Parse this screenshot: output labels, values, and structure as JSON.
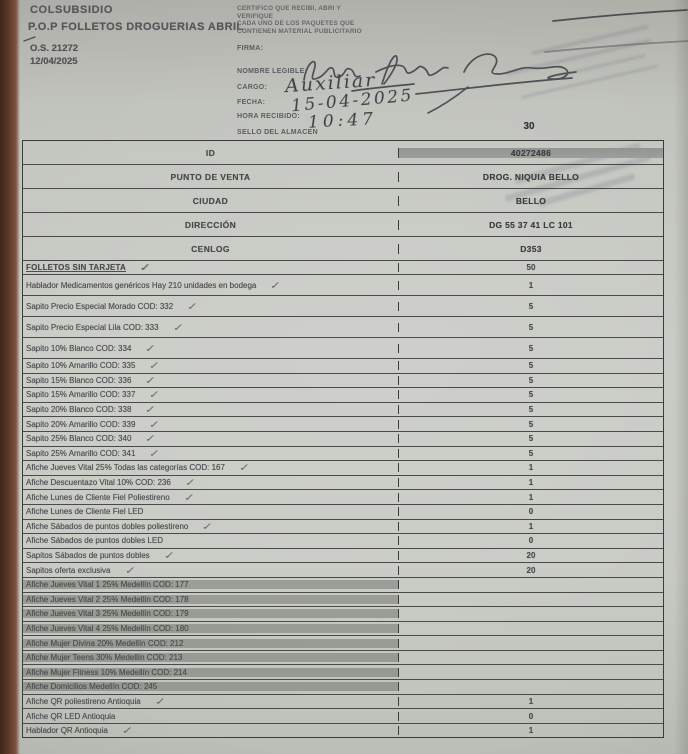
{
  "header": {
    "company": "COLSUBSIDIO",
    "title": "P.O.P FOLLETOS DROGUERIAS ABRIL",
    "order_number": "O.S. 21272",
    "order_date": "12/04/2025"
  },
  "certificate": {
    "line1": "CERTIFICO QUE RECIBI, ABRI Y",
    "line2": "VERIFIQUE",
    "line3": "CADA UNO DE LOS PAQUETES QUE",
    "line4": "CONTIENEN MATERIAL PUBLICITARIO"
  },
  "reception_form": {
    "firma_label": "FIRMA:",
    "nombre_legible_label": "NOMBRE LEGIBLE:",
    "cargo_label": "CARGO:",
    "fecha_label": "FECHA:",
    "hora_recibido_label": "HORA RECIBIDO:",
    "sello_almacen_label": "SELLO DEL ALMACEN",
    "almacen_number": "30",
    "handwritten": {
      "cargo": "Auxiliar",
      "fecha": "15-04-2025",
      "hora": "10:47"
    }
  },
  "table": {
    "info_rows": [
      {
        "label": "ID",
        "value": "40272486"
      },
      {
        "label": "PUNTO DE VENTA",
        "value": "DROG. NIQUIA BELLO"
      },
      {
        "label": "CIUDAD",
        "value": "BELLO"
      },
      {
        "label": "DIRECCIÓN",
        "value": "DG 55 37 41 LC 101"
      },
      {
        "label": "CENLOG",
        "value": "D353"
      }
    ],
    "items": [
      {
        "label": "FOLLETOS SIN TARJETA",
        "value": "50",
        "tick": true,
        "shaded": false
      },
      {
        "label": "Hablador Medicamentos genéricos Hay 210 unidades en bodega",
        "value": "1",
        "tick": true,
        "shaded": false
      },
      {
        "label": "Sapito Precio Especial Morado COD: 332",
        "value": "5",
        "tick": true,
        "shaded": false
      },
      {
        "label": "Sapito Precio Especial Lila COD: 333",
        "value": "5",
        "tick": true,
        "shaded": false
      },
      {
        "label": "Sapito 10% Blanco COD: 334",
        "value": "5",
        "tick": true,
        "shaded": false
      },
      {
        "label": "Sapito 10% Amarillo COD: 335",
        "value": "5",
        "tick": true,
        "shaded": false
      },
      {
        "label": "Sapito 15% Blanco COD: 336",
        "value": "5",
        "tick": true,
        "shaded": false
      },
      {
        "label": "Sapito 15% Amarillo COD: 337",
        "value": "5",
        "tick": true,
        "shaded": false
      },
      {
        "label": "Sapito 20% Blanco COD: 338",
        "value": "5",
        "tick": true,
        "shaded": false
      },
      {
        "label": "Sapito 20% Amarillo COD: 339",
        "value": "5",
        "tick": true,
        "shaded": false
      },
      {
        "label": "Sapito 25% Blanco COD: 340",
        "value": "5",
        "tick": true,
        "shaded": false
      },
      {
        "label": "Sapito 25% Amarillo COD: 341",
        "value": "5",
        "tick": true,
        "shaded": false
      },
      {
        "label": "Afiche Jueves Vital 25% Todas las categorías COD: 167",
        "value": "1",
        "tick": true,
        "shaded": false
      },
      {
        "label": "Afiche Descuentazo Vital 10% COD: 236",
        "value": "1",
        "tick": true,
        "shaded": false
      },
      {
        "label": "Afiche Lunes de Cliente Fiel Poliestireno",
        "value": "1",
        "tick": true,
        "shaded": false
      },
      {
        "label": "Afiche Lunes de Cliente Fiel LED",
        "value": "0",
        "tick": false,
        "shaded": false
      },
      {
        "label": "Afiche Sábados de puntos dobles poliestireno",
        "value": "1",
        "tick": true,
        "shaded": false
      },
      {
        "label": "Afiche Sábados de puntos dobles LED",
        "value": "0",
        "tick": false,
        "shaded": false
      },
      {
        "label": "Sapitos Sábados de puntos dobles",
        "value": "20",
        "tick": true,
        "shaded": false
      },
      {
        "label": "Sapitos oferta exclusiva",
        "value": "20",
        "tick": true,
        "shaded": false
      },
      {
        "label": "Afiche Jueves Vital 1 25% Medellín COD: 177",
        "value": "",
        "tick": false,
        "shaded": true
      },
      {
        "label": "Afiche Jueves Vital 2 25% Medellín COD: 178",
        "value": "",
        "tick": false,
        "shaded": true
      },
      {
        "label": "Afiche Jueves Vital 3 25% Medellín COD: 179",
        "value": "",
        "tick": false,
        "shaded": true
      },
      {
        "label": "Afiche Jueves Vital 4 25% Medellín COD: 180",
        "value": "",
        "tick": false,
        "shaded": true
      },
      {
        "label": "Afiche Mujer Divina 20% Medellín COD: 212",
        "value": "",
        "tick": false,
        "shaded": true
      },
      {
        "label": "Afiche Mujer Teens 30% Medellín COD: 213",
        "value": "",
        "tick": false,
        "shaded": true
      },
      {
        "label": "Afiche Mujer Fitness 10% Medellín COD: 214",
        "value": "",
        "tick": false,
        "shaded": true
      },
      {
        "label": "Afiche Domicilios Medellín COD: 245",
        "value": "",
        "tick": false,
        "shaded": true
      },
      {
        "label": "Afiche QR poliestireno Antioquia",
        "value": "1",
        "tick": true,
        "shaded": false
      },
      {
        "label": "Afiche QR LED Antioquia",
        "value": "0",
        "tick": false,
        "shaded": false
      },
      {
        "label": "Hablador QR Antioquia",
        "value": "1",
        "tick": true,
        "shaded": false
      }
    ]
  }
}
